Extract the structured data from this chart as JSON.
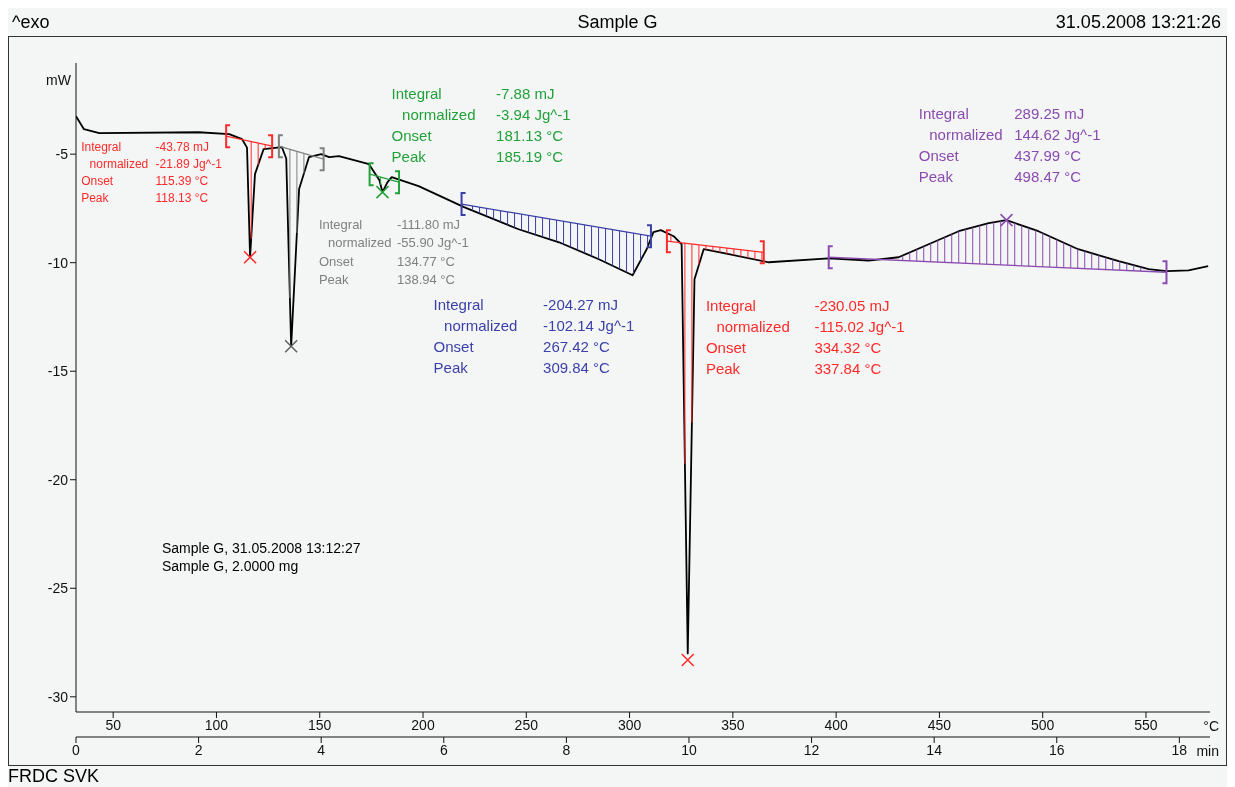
{
  "chart_data": {
    "type": "line",
    "title": "Sample G",
    "xlabel": "min",
    "ylabel": "mW",
    "x2label": "°C",
    "xlim": [
      0,
      18.5
    ],
    "xticks": [
      0,
      2,
      4,
      6,
      8,
      10,
      12,
      14,
      16,
      18
    ],
    "ylim": [
      -30.7,
      -0.8
    ],
    "yticks": [
      -5,
      -10,
      -15,
      -20,
      -25,
      -30
    ],
    "x2lim": [
      32,
      581
    ],
    "x2ticks": [
      50,
      100,
      150,
      200,
      250,
      300,
      350,
      400,
      450,
      500,
      550
    ],
    "line_style": "solid",
    "series": [
      {
        "color": "#000000",
        "x": [
          0,
          0.13,
          0.38,
          2.0,
          2.5,
          2.71,
          2.79,
          2.84,
          2.92,
          3.06,
          3.36,
          3.43,
          3.51,
          3.64,
          3.8,
          4.0,
          4.13,
          4.29,
          4.78,
          4.95,
          5.0,
          5.08,
          5.15,
          5.59,
          6.33,
          7.22,
          7.88,
          8.53,
          9.08,
          9.31,
          9.42,
          9.54,
          9.75,
          9.88,
          9.98,
          10.09,
          10.24,
          10.65,
          11.3,
          12.28,
          12.93,
          13.42,
          13.91,
          14.4,
          14.89,
          15.18,
          15.7,
          16.35,
          17.01,
          17.5,
          17.79,
          18.15,
          18.47
        ],
        "values": [
          -3.25,
          -3.85,
          -4.03,
          -3.99,
          -4.08,
          -4.31,
          -4.7,
          -9.75,
          -5.92,
          -4.77,
          -4.68,
          -5.2,
          -13.85,
          -6.6,
          -5.14,
          -5.0,
          -5.14,
          -5.09,
          -5.46,
          -6.2,
          -6.75,
          -6.3,
          -6.06,
          -6.47,
          -7.44,
          -8.46,
          -9.06,
          -9.84,
          -10.58,
          -9.38,
          -8.59,
          -8.5,
          -8.78,
          -9.15,
          -28.0,
          -10.76,
          -9.38,
          -9.61,
          -9.98,
          -9.8,
          -9.9,
          -9.75,
          -9.15,
          -8.55,
          -8.18,
          -8.04,
          -8.55,
          -9.38,
          -9.93,
          -10.3,
          -10.39,
          -10.35,
          -10.16
        ]
      },
      {
        "type": "line",
        "color": "#ff2a2a",
        "x": [
          2.45,
          3.2
        ],
        "values": [
          -4.17,
          -4.63
        ]
      },
      {
        "type": "line",
        "color": "#808080",
        "x": [
          3.31,
          4.04
        ],
        "values": [
          -4.63,
          -5.23
        ]
      },
      {
        "type": "line",
        "color": "#22a03a",
        "x": [
          4.79,
          5.27
        ],
        "values": [
          -5.92,
          -6.29
        ]
      },
      {
        "type": "line",
        "color": "#3b3fa8",
        "x": [
          6.29,
          9.38
        ],
        "values": [
          -7.3,
          -8.78
        ]
      },
      {
        "type": "line",
        "color": "#ff2a2a",
        "x": [
          9.64,
          11.22
        ],
        "values": [
          -9.01,
          -9.52
        ]
      },
      {
        "type": "line",
        "color": "#8a4bb0",
        "x": [
          12.28,
          17.79
        ],
        "values": [
          -9.75,
          -10.44
        ]
      },
      {
        "type": "scatter",
        "marker": "cross",
        "x": [
          2.84,
          3.51,
          5.0,
          9.98,
          15.18
        ],
        "values": [
          -9.75,
          -13.85,
          -6.75,
          -28.3,
          -8.04
        ],
        "colors": [
          "#ff2a2a",
          "#606060",
          "#22a03a",
          "#ff2a2a",
          "#8a4bb0"
        ]
      }
    ],
    "annotations": [
      "Integral",
      "-43.78 mJ",
      "normalized",
      "-21.89 Jg^-1",
      "Onset",
      "115.39 °C",
      "Peak",
      "118.13 °C",
      "Integral",
      "-111.80 mJ",
      "normalized",
      "-55.90 Jg^-1",
      "Onset",
      "134.77 °C",
      "Peak",
      "138.94 °C",
      "Integral",
      "-7.88 mJ",
      "normalized",
      "-3.94 Jg^-1",
      "Onset",
      "181.13 °C",
      "Peak",
      "185.19 °C",
      "Integral",
      "-204.27 mJ",
      "normalized",
      "-102.14 Jg^-1",
      "Onset",
      "267.42 °C",
      "Peak",
      "309.84 °C",
      "Integral",
      "-230.05 mJ",
      "normalized",
      "-115.02 Jg^-1",
      "Onset",
      "334.32 °C",
      "Peak",
      "337.84 °C",
      "Integral",
      "289.25 mJ",
      "normalized",
      "144.62 Jg^-1",
      "Onset",
      "437.99 °C",
      "Peak",
      "498.47 °C",
      "^exo",
      "31.05.2008 13:21:26",
      "Sample G, 31.05.2008 13:12:27",
      "Sample G, 2.0000 mg",
      "FRDC SVK"
    ]
  }
}
